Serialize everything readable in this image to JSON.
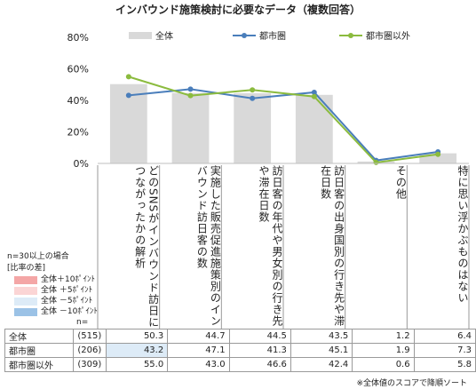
{
  "chart_data": {
    "type": "bar",
    "title": "インバウンド施策検討に必要なデータ（複数回答）",
    "ylim": [
      0,
      80
    ],
    "yticks": [
      "0%",
      "20%",
      "40%",
      "60%",
      "80%"
    ],
    "grid": false,
    "legend_position": "top",
    "categories": [
      "どのSNSがインバウンド訪日につながったかの解析",
      "実施した販売促進施策別のインバウンド訪日客の数",
      "訪日客の年代や男女別の行き先や滞在日数",
      "訪日客の出身国別の行き先や滞在日数",
      "その他",
      "特に思い浮かぶものはない"
    ],
    "series": [
      {
        "name": "全体",
        "kind": "bar",
        "n": "(515)",
        "color": "#d9d9d9",
        "values": [
          50.3,
          44.7,
          44.5,
          43.5,
          1.2,
          6.4
        ],
        "labels": [
          "50.3",
          "44.7",
          "44.5",
          "43.5",
          "1.2",
          "6.4"
        ]
      },
      {
        "name": "都市圏",
        "kind": "line",
        "n": "(206)",
        "color": "#4a7ebb",
        "values": [
          43.2,
          47.1,
          41.3,
          45.1,
          1.9,
          7.3
        ],
        "labels": [
          "43.2",
          "47.1",
          "41.3",
          "45.1",
          "1.9",
          "7.3"
        ]
      },
      {
        "name": "都市圏以外",
        "kind": "line",
        "n": "(309)",
        "color": "#8bbb3e",
        "values": [
          55.0,
          43.0,
          46.6,
          42.4,
          0.6,
          5.8
        ],
        "labels": [
          "55.0",
          "43.0",
          "46.6",
          "42.4",
          "0.6",
          "5.8"
        ]
      }
    ],
    "highlight_cells": [
      {
        "series": 1,
        "category": 0,
        "color": "#ddebf7"
      }
    ],
    "n_label": "n=",
    "note": {
      "title": "n=30以上の場合",
      "subtitle": "[比率の差]",
      "items": [
        {
          "color": "#f4a6a6",
          "label": "全体＋10ﾎﾟｲﾝﾄ"
        },
        {
          "color": "#fbd5d5",
          "label": "全体 ＋5ﾎﾟｲﾝﾄ"
        },
        {
          "color": "#ddebf7",
          "label": "全体 －5ﾎﾟｲﾝﾄ"
        },
        {
          "color": "#9bc2e6",
          "label": "全体 －10ﾎﾟｲﾝﾄ"
        }
      ]
    },
    "footnote": "※全体値のスコアで降順ソート"
  }
}
